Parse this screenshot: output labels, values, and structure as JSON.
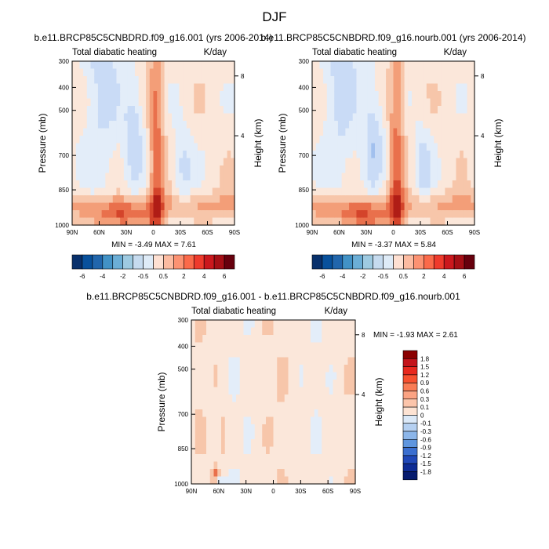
{
  "page_title": "DJF",
  "chart_data": [
    {
      "type": "heatmap",
      "title": "b.e11.BRCP85C5CNBDRD.f09_g16.001 (yrs 2006-2014)",
      "subtitle_left": "Total diabatic heating",
      "subtitle_right": "K/day",
      "ylabel": "Pressure (mb)",
      "ylabel_right": "Height (km)",
      "x_ticks": [
        "90N",
        "60N",
        "30N",
        "0",
        "30S",
        "60S",
        "90S"
      ],
      "y_ticks": [
        "300",
        "400",
        "500",
        "700",
        "850",
        "1000"
      ],
      "y_right_ticks": [
        "8",
        "4"
      ],
      "stats": "MIN =  -3.49  MAX =   7.61"
    },
    {
      "type": "heatmap",
      "title": "b.e11.BRCP85C5CNBDRD.f09_g16.nourb.001 (yrs 2006-2014)",
      "subtitle_left": "Total diabatic heating",
      "subtitle_right": "K/day",
      "ylabel": "Pressure (mb)",
      "ylabel_right": "Height (km)",
      "x_ticks": [
        "90N",
        "60N",
        "30N",
        "0",
        "30S",
        "60S",
        "90S"
      ],
      "y_ticks": [
        "300",
        "400",
        "500",
        "700",
        "850",
        "1000"
      ],
      "y_right_ticks": [
        "8",
        "4"
      ],
      "stats": "MIN =  -3.37  MAX =   5.84"
    },
    {
      "type": "heatmap",
      "title": "b.e11.BRCP85C5CNBDRD.f09_g16.001 - b.e11.BRCP85C5CNBDRD.f09_g16.nourb.001",
      "subtitle_left": "Total diabatic heating",
      "subtitle_right": "K/day",
      "ylabel": "Pressure (mb)",
      "ylabel_right": "Height (km)",
      "x_ticks": [
        "90N",
        "60N",
        "30N",
        "0",
        "30S",
        "60S",
        "90S"
      ],
      "y_ticks": [
        "300",
        "400",
        "500",
        "700",
        "850",
        "1000"
      ],
      "y_right_ticks": [
        "8",
        "4"
      ],
      "stats": "MIN =  -1.93  MAX =   2.61"
    }
  ],
  "colorbar_top": {
    "labels": [
      "-6",
      "-4",
      "-2",
      "-0.5",
      "0.5",
      "2",
      "4",
      "6"
    ],
    "colors": [
      "#08306b",
      "#08519c",
      "#2166ac",
      "#4292c6",
      "#6baed6",
      "#9ecae1",
      "#c6dbef",
      "#deebf7",
      "#fee0d2",
      "#fcbba1",
      "#fc9272",
      "#fb6a4a",
      "#ef3b2c",
      "#cb181d",
      "#a50f15",
      "#67000d"
    ]
  },
  "colorbar_bottom": {
    "labels": [
      "1.8",
      "1.5",
      "1.2",
      "0.9",
      "0.6",
      "0.3",
      "0.1",
      "0",
      "-0.1",
      "-0.3",
      "-0.6",
      "-0.9",
      "-1.2",
      "-1.5",
      "-1.8"
    ],
    "colors": [
      "#8b0000",
      "#c4141b",
      "#e8281e",
      "#f7502f",
      "#f97c55",
      "#fba383",
      "#fcc5ab",
      "#fde3d3",
      "#dbe9f8",
      "#b5d0f1",
      "#8cb6ea",
      "#5f96df",
      "#3b6fd0",
      "#2048b8",
      "#0d2b95",
      "#061b6f"
    ]
  }
}
